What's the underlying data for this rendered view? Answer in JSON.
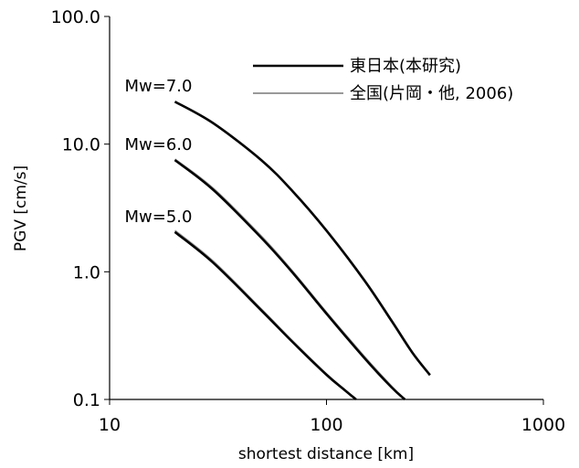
{
  "chart_data": {
    "type": "line",
    "x_scale": "log",
    "y_scale": "log",
    "xlabel": "shortest distance [km]",
    "ylabel": "PGV [cm/s]",
    "xlim": [
      10,
      1000
    ],
    "ylim": [
      0.1,
      100
    ],
    "x_tick_labels": [
      "10",
      "100",
      "1000"
    ],
    "y_tick_labels": [
      "100.0",
      "10.0",
      "1.0",
      "0.1"
    ],
    "grid": false,
    "legend_position": "top-right",
    "series": [
      {
        "name": "東日本(本研究)",
        "color": "#000000",
        "curves": [
          {
            "label": "Mw=7.0",
            "x": [
              20,
              30,
              50,
              70,
              100,
              150,
              200,
              250,
              300
            ],
            "y": [
              21.5,
              14.6,
              7.5,
              4.25,
              2.1,
              0.85,
              0.41,
              0.23,
              0.155
            ]
          },
          {
            "label": "Mw=6.0",
            "x": [
              20,
              30,
              50,
              70,
              100,
              150,
              200,
              230
            ],
            "y": [
              7.5,
              4.4,
              1.85,
              0.98,
              0.47,
              0.21,
              0.124,
              0.1
            ]
          },
          {
            "label": "Mw=5.0",
            "x": [
              20,
              30,
              50,
              70,
              100,
              120,
              137
            ],
            "y": [
              2.05,
              1.18,
              0.5,
              0.28,
              0.156,
              0.12,
              0.1
            ]
          }
        ]
      },
      {
        "name": "全国(片岡・他, 2006)",
        "color": "#999999",
        "curves": [
          {
            "label": "Mw=7.0",
            "x": [
              20,
              30,
              50,
              70,
              100,
              150,
              200,
              250,
              300
            ],
            "y": [
              21.5,
              14.7,
              7.55,
              4.28,
              2.12,
              0.86,
              0.415,
              0.232,
              0.156
            ]
          },
          {
            "label": "Mw=6.0",
            "x": [
              20,
              30,
              50,
              70,
              100,
              150,
              200,
              230
            ],
            "y": [
              7.6,
              4.5,
              1.9,
              1.0,
              0.48,
              0.215,
              0.126,
              0.1
            ]
          },
          {
            "label": "Mw=5.0",
            "x": [
              20,
              30,
              50,
              70,
              100,
              120,
              137
            ],
            "y": [
              2.1,
              1.21,
              0.51,
              0.285,
              0.158,
              0.121,
              0.1
            ]
          }
        ]
      }
    ]
  }
}
